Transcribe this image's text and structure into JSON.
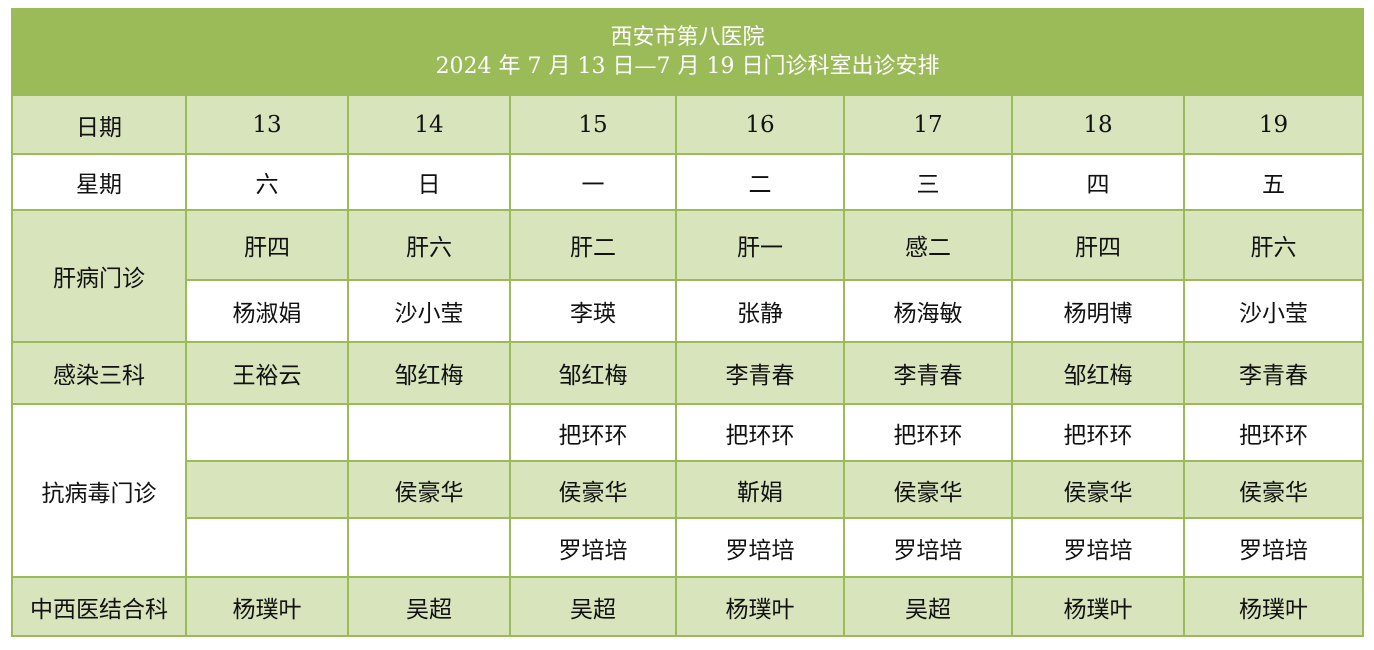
{
  "title": {
    "line1": "西安市第八医院",
    "line2": "2024 年 7 月 13 日—7 月 19 日门诊科室出诊安排"
  },
  "colors": {
    "header_bg": "#9BBB59",
    "band_bg": "#D7E4BC",
    "border": "#9BBB59"
  },
  "date_row": {
    "label": "日期",
    "values": [
      "13",
      "14",
      "15",
      "16",
      "17",
      "18",
      "19"
    ]
  },
  "weekday_row": {
    "label": "星期",
    "values": [
      "六",
      "日",
      "一",
      "二",
      "三",
      "四",
      "五"
    ]
  },
  "liver": {
    "label": "肝病门诊",
    "rooms": [
      "肝四",
      "肝六",
      "肝二",
      "肝一",
      "感二",
      "肝四",
      "肝六"
    ],
    "doctors": [
      "杨淑娟",
      "沙小莹",
      "李瑛",
      "张静",
      "杨海敏",
      "杨明博",
      "沙小莹"
    ]
  },
  "infection": {
    "label": "感染三科",
    "doctors": [
      "王裕云",
      "邹红梅",
      "邹红梅",
      "李青春",
      "李青春",
      "邹红梅",
      "李青春"
    ]
  },
  "antiviral": {
    "label": "抗病毒门诊",
    "row1": [
      "",
      "",
      "把环环",
      "把环环",
      "把环环",
      "把环环",
      "把环环"
    ],
    "row2": [
      "",
      "侯豪华",
      "侯豪华",
      "靳娟",
      "侯豪华",
      "侯豪华",
      "侯豪华"
    ],
    "row3": [
      "",
      "",
      "罗培培",
      "罗培培",
      "罗培培",
      "罗培培",
      "罗培培"
    ]
  },
  "integrated": {
    "label": "中西医结合科",
    "doctors": [
      "杨璞叶",
      "吴超",
      "吴超",
      "杨璞叶",
      "吴超",
      "杨璞叶",
      "杨璞叶"
    ]
  }
}
